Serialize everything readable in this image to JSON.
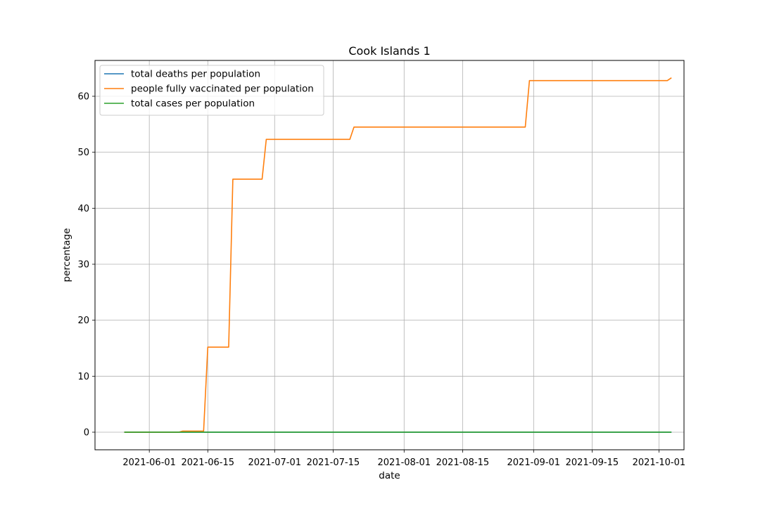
{
  "chart_data": {
    "type": "line",
    "title": "Cook Islands 1",
    "xlabel": "date",
    "ylabel": "percentage",
    "x_type": "date",
    "xlim": [
      "2021-05-19",
      "2021-10-07"
    ],
    "ylim": [
      -3.14,
      66.4
    ],
    "grid": true,
    "legend_position": "top-left",
    "x_ticks": [
      "2021-06-01",
      "2021-06-15",
      "2021-07-01",
      "2021-07-15",
      "2021-08-01",
      "2021-08-15",
      "2021-09-01",
      "2021-09-15",
      "2021-10-01"
    ],
    "y_ticks": [
      0,
      10,
      20,
      30,
      40,
      50,
      60
    ],
    "series": [
      {
        "name": "total deaths per population",
        "color": "#1f77b4",
        "x": [
          "2021-05-26",
          "2021-10-04"
        ],
        "values": [
          0,
          0
        ]
      },
      {
        "name": "people fully vaccinated per population",
        "color": "#ff7f0e",
        "x": [
          "2021-05-26",
          "2021-06-08",
          "2021-06-09",
          "2021-06-14",
          "2021-06-15",
          "2021-06-20",
          "2021-06-21",
          "2021-06-28",
          "2021-06-29",
          "2021-07-19",
          "2021-07-20",
          "2021-08-30",
          "2021-08-31",
          "2021-10-03",
          "2021-10-04"
        ],
        "values": [
          0,
          0,
          0.2,
          0.2,
          15.2,
          15.2,
          45.2,
          45.2,
          52.3,
          52.3,
          54.5,
          54.5,
          62.8,
          62.8,
          63.3
        ]
      },
      {
        "name": "total cases per population",
        "color": "#2ca02c",
        "x": [
          "2021-05-26",
          "2021-10-04"
        ],
        "values": [
          0,
          0
        ]
      }
    ]
  }
}
